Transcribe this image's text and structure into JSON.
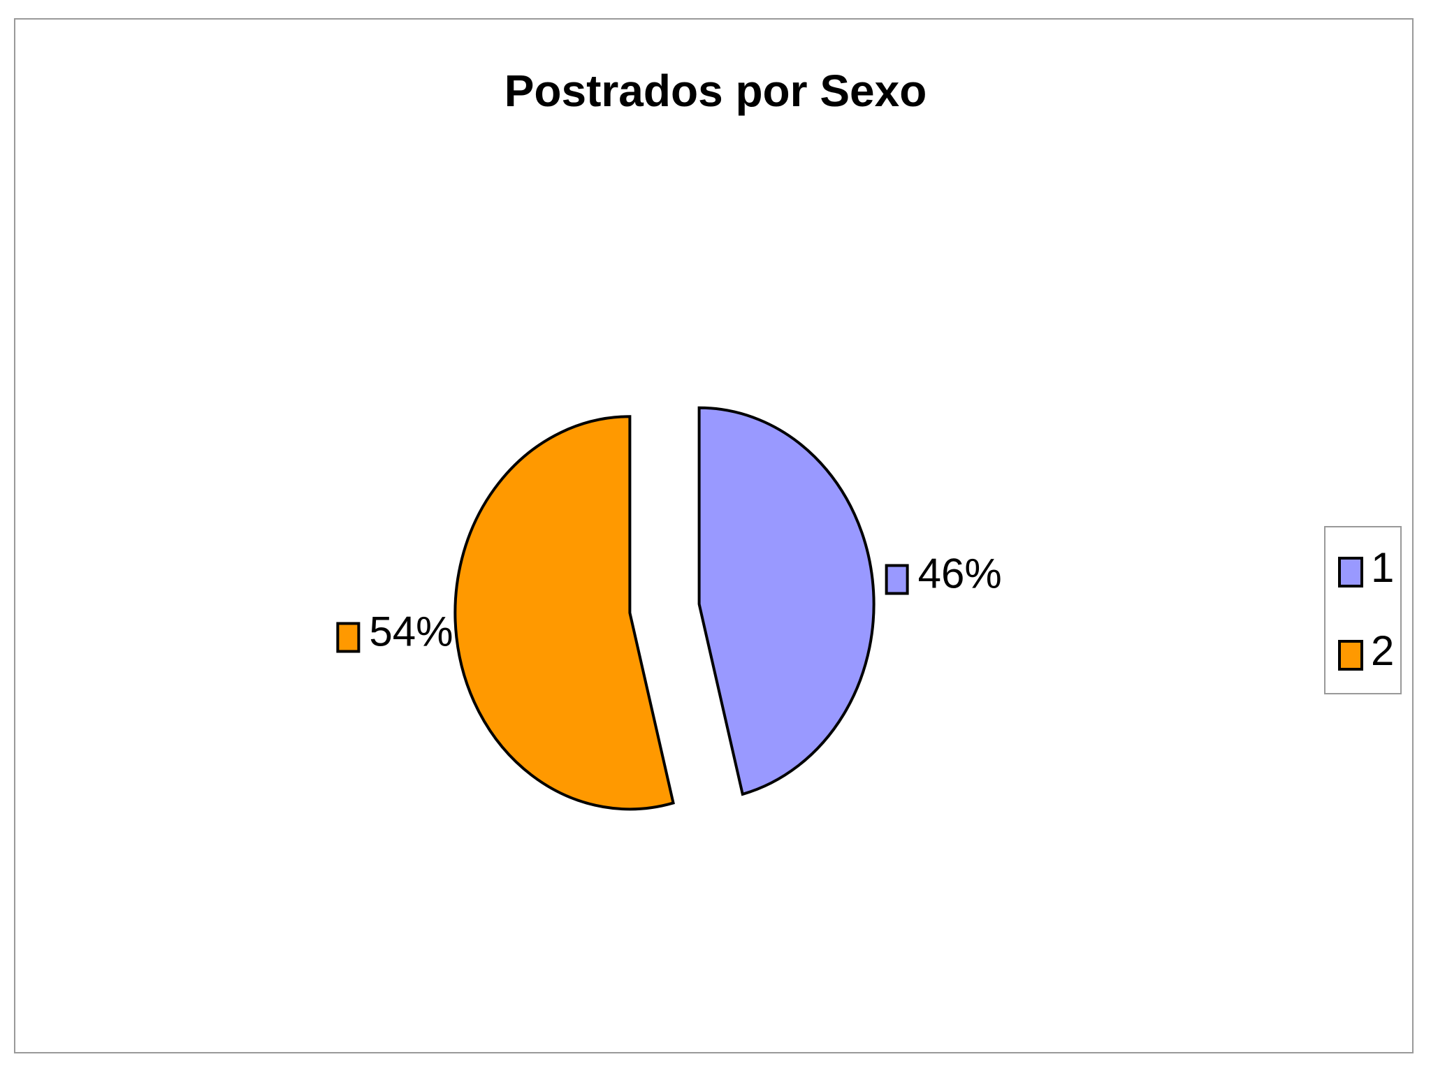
{
  "chart_data": {
    "type": "pie",
    "title": "Postrados por Sexo",
    "categories": [
      "1",
      "2"
    ],
    "values": [
      46,
      54
    ],
    "value_labels": [
      "46%",
      "54%"
    ],
    "colors": [
      "#9999ff",
      "#ff9900"
    ],
    "legend": "right"
  }
}
